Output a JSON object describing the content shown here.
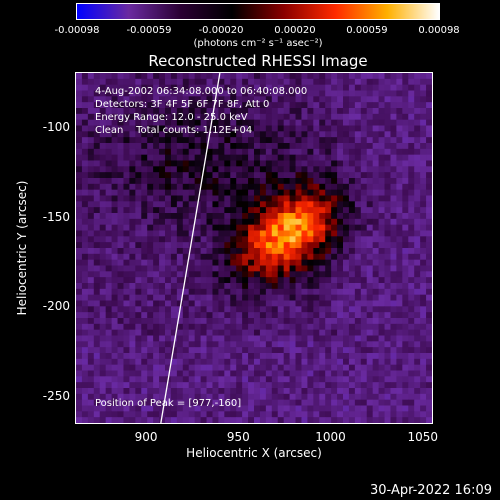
{
  "chart_data": {
    "type": "heatmap",
    "title": "Reconstructed RHESSI Image",
    "xlabel": "Heliocentric X (arcsec)",
    "ylabel": "Heliocentric Y (arcsec)",
    "xlim": [
      862,
      1055
    ],
    "ylim": [
      -265,
      -70
    ],
    "x_ticks": [
      "900",
      "950",
      "1000",
      "1050"
    ],
    "x_tick_values": [
      900,
      950,
      1000,
      1050
    ],
    "y_ticks": [
      "-100",
      "-150",
      "-200",
      "-250"
    ],
    "y_tick_values": [
      -100,
      -150,
      -200,
      -250
    ],
    "colorbar": {
      "ticks": [
        "-0.00098",
        "-0.00059",
        "-0.00020",
        "0.00020",
        "0.00059",
        "0.00098"
      ],
      "tick_values": [
        -0.00098,
        -0.00059,
        -0.0002,
        0.0002,
        0.00059,
        0.00098
      ],
      "range": [
        -0.00098,
        0.00098
      ],
      "unit": "(photons cm⁻² s⁻¹ asec⁻²)",
      "colors": [
        "#0000ff",
        "#6a2aa0",
        "#2a0033",
        "#000000",
        "#8a0000",
        "#ff2a00",
        "#ffb000",
        "#ffffff"
      ]
    },
    "annotations": {
      "time_range": "4-Aug-2002 06:34:08.000 to 06:40:08.000",
      "detectors": "Detectors: 3F 4F 5F 6F 7F 8F, Att 0",
      "energy_range": "Energy Range: 12.0 - 25.0 keV",
      "clean": "Clean    Total counts: 1.12E+04",
      "peak": "Position of Peak = [977,-160]"
    },
    "peak_position": [
      977,
      -160
    ],
    "limb_line": [
      [
        908,
        -265
      ],
      [
        940,
        -70
      ]
    ],
    "footer_date": "30-Apr-2022 16:09"
  }
}
